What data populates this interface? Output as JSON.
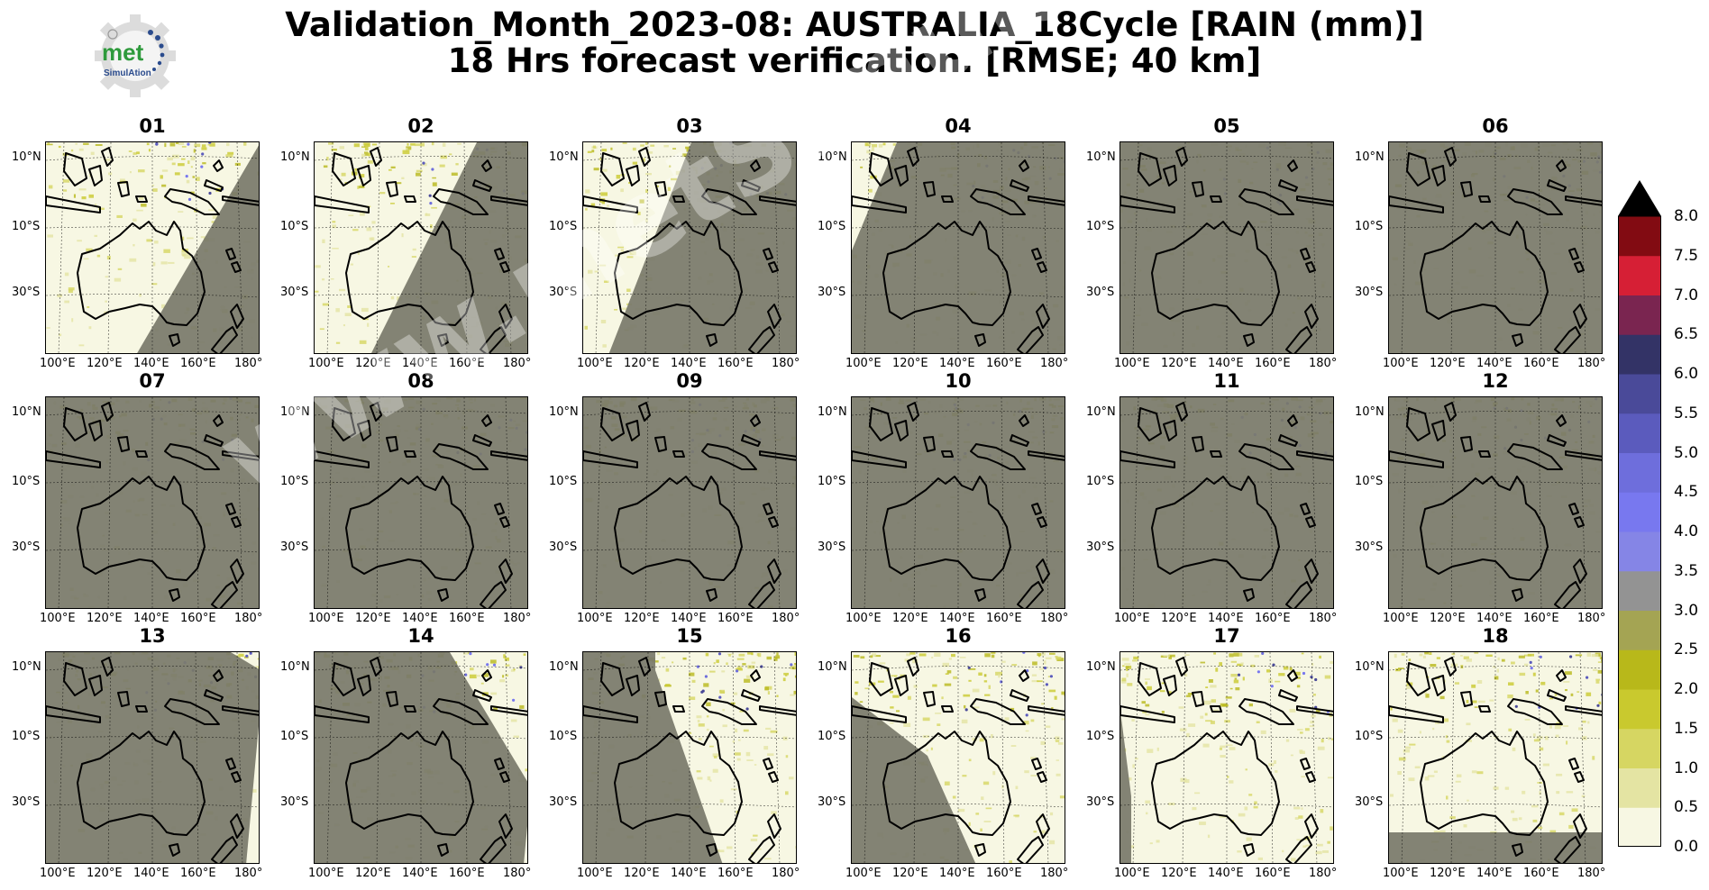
{
  "figure": {
    "title_line1": "Validation_Month_2023-08: AUSTRALIA_18Cycle [RAIN (mm)]",
    "title_line2": "18 Hrs forecast verification.  [RMSE; 40 km]"
  },
  "logo": {
    "word": "met",
    "subword": "SimulAtion",
    "icon": "gear-logo-icon"
  },
  "watermark": "www.metSimulation.com",
  "panels": [
    {
      "label": "01"
    },
    {
      "label": "02"
    },
    {
      "label": "03"
    },
    {
      "label": "04"
    },
    {
      "label": "05"
    },
    {
      "label": "06"
    },
    {
      "label": "07"
    },
    {
      "label": "08"
    },
    {
      "label": "09"
    },
    {
      "label": "10"
    },
    {
      "label": "11"
    },
    {
      "label": "12"
    },
    {
      "label": "13"
    },
    {
      "label": "14"
    },
    {
      "label": "15"
    },
    {
      "label": "16"
    },
    {
      "label": "17"
    },
    {
      "label": "18"
    }
  ],
  "axes": {
    "lat_labels": [
      "10°N",
      "10°S",
      "30°S"
    ],
    "lon_labels": [
      "100°E",
      "120°E",
      "140°E",
      "160°E",
      "180°"
    ]
  },
  "colorbar": {
    "ticks": [
      "8.0",
      "7.5",
      "7.0",
      "6.5",
      "6.0",
      "5.5",
      "5.0",
      "4.5",
      "4.0",
      "3.5",
      "3.0",
      "2.5",
      "2.0",
      "1.5",
      "1.0",
      "0.5",
      "0.0"
    ],
    "colors": [
      "#f7f7e3",
      "#e4e4a3",
      "#d6d662",
      "#c9c92e",
      "#b8b81a",
      "#a4a453",
      "#939393",
      "#8585e6",
      "#7878ef",
      "#6e6edc",
      "#5b5bbd",
      "#4a4a99",
      "#333366",
      "#7a2550",
      "#d61f35",
      "#820b12"
    ],
    "extend_color": "#000000"
  },
  "colors": {
    "night_shade": "#7a7a6c",
    "land_line": "#000000",
    "background": "#ffffff"
  }
}
